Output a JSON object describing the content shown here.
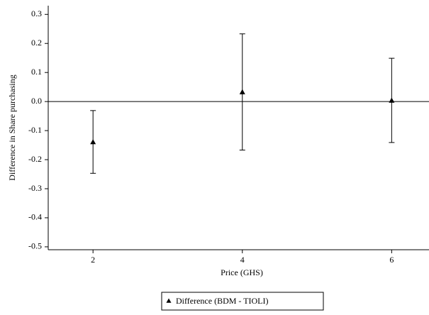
{
  "chart_data": {
    "type": "scatter",
    "xlabel": "Price (GHS)",
    "ylabel": "Difference in Share purchasing",
    "xlim": [
      1.4,
      6.5
    ],
    "xticks": [
      2,
      4,
      6
    ],
    "ylim": [
      -0.51,
      0.33
    ],
    "yticks": [
      0.3,
      0.2,
      0.1,
      {
        "value": 0,
        "label": "0.0"
      },
      -0.1,
      -0.2,
      -0.3,
      -0.4,
      -0.5
    ],
    "hline": 0,
    "grid": false,
    "legend": "bottom",
    "series": [
      {
        "name": "Difference (BDM - TIOLI)",
        "color": "#000000",
        "marker": "triangle",
        "x": [
          2,
          4,
          6
        ],
        "values": [
          -0.139,
          0.033,
          0.004
        ],
        "errors": [
          0.108,
          0.2,
          0.145
        ]
      }
    ]
  }
}
